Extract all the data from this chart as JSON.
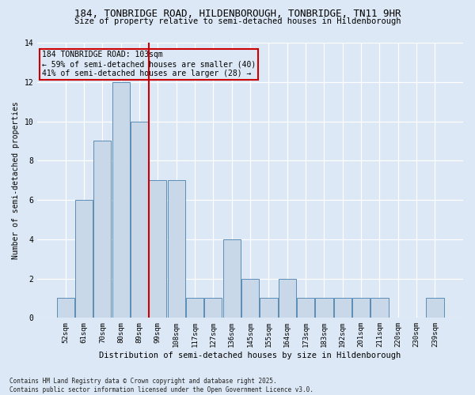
{
  "title_line1": "184, TONBRIDGE ROAD, HILDENBOROUGH, TONBRIDGE, TN11 9HR",
  "title_line2": "Size of property relative to semi-detached houses in Hildenborough",
  "xlabel": "Distribution of semi-detached houses by size in Hildenborough",
  "ylabel": "Number of semi-detached properties",
  "footnote": "Contains HM Land Registry data © Crown copyright and database right 2025.\nContains public sector information licensed under the Open Government Licence v3.0.",
  "categories": [
    "52sqm",
    "61sqm",
    "70sqm",
    "80sqm",
    "89sqm",
    "99sqm",
    "108sqm",
    "117sqm",
    "127sqm",
    "136sqm",
    "145sqm",
    "155sqm",
    "164sqm",
    "173sqm",
    "183sqm",
    "192sqm",
    "201sqm",
    "211sqm",
    "220sqm",
    "230sqm",
    "239sqm"
  ],
  "values": [
    1,
    6,
    9,
    12,
    10,
    7,
    7,
    1,
    1,
    4,
    2,
    1,
    2,
    1,
    1,
    1,
    1,
    1,
    0,
    0,
    1
  ],
  "bar_color": "#c8d8e8",
  "bar_edgecolor": "#5b8db5",
  "background_color": "#dce8f5",
  "vline_x": 4.5,
  "vline_color": "#cc0000",
  "annotation_text": "184 TONBRIDGE ROAD: 103sqm\n← 59% of semi-detached houses are smaller (40)\n41% of semi-detached houses are larger (28) →",
  "annotation_box_facecolor": "#dce8f5",
  "annotation_box_edgecolor": "#cc0000",
  "ylim": [
    0,
    14
  ],
  "yticks": [
    0,
    2,
    4,
    6,
    8,
    10,
    12,
    14
  ]
}
